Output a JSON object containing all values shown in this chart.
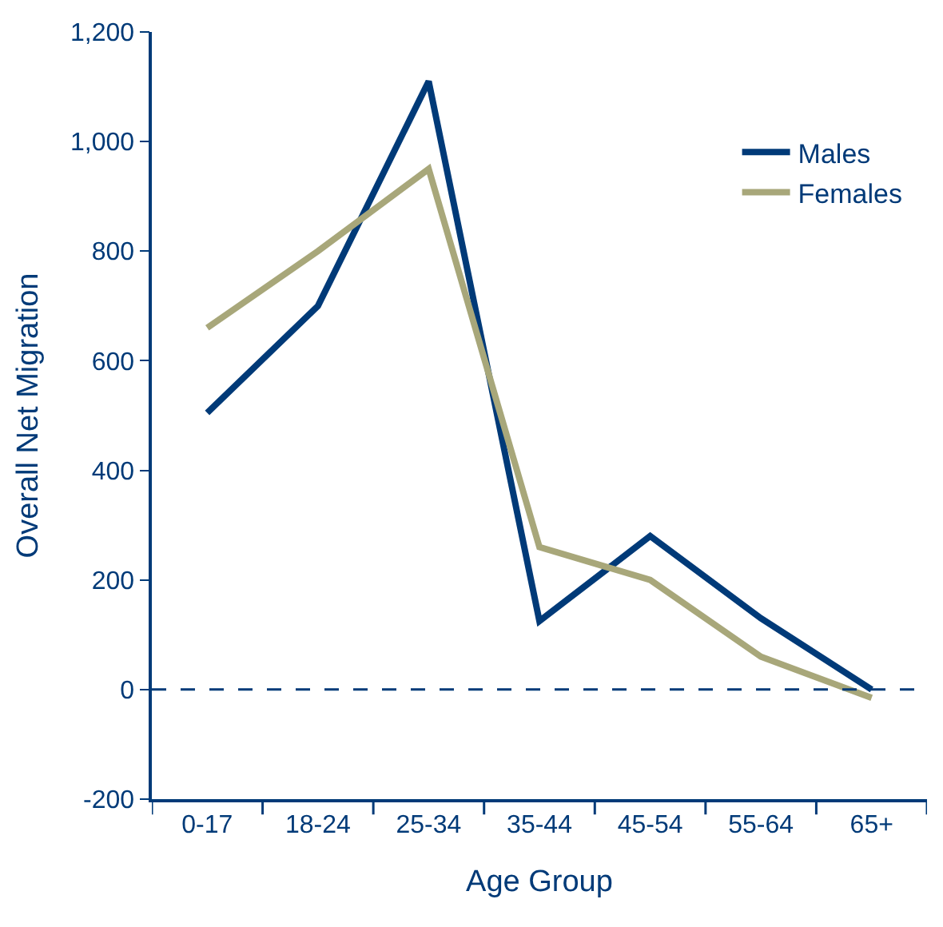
{
  "chart_data": {
    "type": "line",
    "xlabel": "Age Group",
    "ylabel": "Overall Net Migration",
    "categories": [
      "0-17",
      "18-24",
      "25-34",
      "35-44",
      "45-54",
      "55-64",
      "65+"
    ],
    "series": [
      {
        "name": "Males",
        "color": "#003a78",
        "values": [
          505,
          700,
          1110,
          125,
          280,
          130,
          0
        ]
      },
      {
        "name": "Females",
        "color": "#a8a77a",
        "values": [
          660,
          800,
          950,
          260,
          200,
          60,
          -15
        ]
      }
    ],
    "ylim": [
      -200,
      1200
    ],
    "yticks": [
      {
        "value": -200,
        "label": "-200"
      },
      {
        "value": 0,
        "label": "0"
      },
      {
        "value": 200,
        "label": "200"
      },
      {
        "value": 400,
        "label": "400"
      },
      {
        "value": 600,
        "label": "600"
      },
      {
        "value": 800,
        "label": "800"
      },
      {
        "value": 1000,
        "label": "1,000"
      },
      {
        "value": 1200,
        "label": "1,200"
      }
    ],
    "ref_lines": [
      {
        "axis": "y",
        "value": 0,
        "color": "#003a78",
        "line_style": "dashed"
      }
    ],
    "legend": "top right",
    "marker": "none",
    "line_style": "solid"
  }
}
